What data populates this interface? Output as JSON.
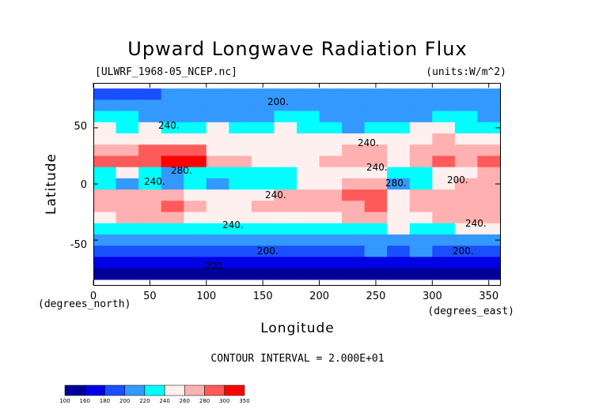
{
  "chart_data": {
    "type": "heatmap",
    "title": "Upward Longwave Radiation Flux",
    "file_label": "[ULWRF_1968-05_NCEP.nc]",
    "units_label": "(units:W/m^2)",
    "xlabel": "Longitude",
    "ylabel": "Latitude",
    "x_unit_label": "(degrees_east)",
    "y_unit_label": "(degrees_north)",
    "xlim": [
      0,
      360
    ],
    "ylim": [
      -90,
      90
    ],
    "x_ticks": [
      0,
      50,
      100,
      150,
      200,
      250,
      300,
      350
    ],
    "y_ticks": [
      -50,
      0,
      50
    ],
    "contour_interval_text": "CONTOUR INTERVAL = 2.000E+01",
    "contour_labels": [
      "200.",
      "240.",
      "240.",
      "280.",
      "240.",
      "280.",
      "240.",
      "240.",
      "200.",
      "200.",
      "200.",
      "240.",
      "200.",
      "240."
    ],
    "colorbar": {
      "levels": [
        "100",
        "160",
        "180",
        "200",
        "220",
        "240",
        "260",
        "280",
        "300",
        "350"
      ],
      "colors": [
        "#000099",
        "#0000e6",
        "#1a4fff",
        "#3399ff",
        "#00ffff",
        "#fff0f0",
        "#ffb0b0",
        "#ff5a5a",
        "#ff0000"
      ]
    },
    "rows": [
      {
        "lat": 80,
        "values": [
          180,
          190,
          190,
          200,
          200,
          200,
          200,
          200,
          200,
          200,
          200,
          200,
          200,
          200,
          200,
          200,
          200,
          200
        ]
      },
      {
        "lat": 70,
        "values": [
          200,
          210,
          210,
          210,
          210,
          210,
          210,
          210,
          210,
          210,
          210,
          210,
          210,
          210,
          210,
          210,
          210,
          200
        ]
      },
      {
        "lat": 60,
        "values": [
          230,
          220,
          210,
          210,
          210,
          210,
          210,
          210,
          220,
          220,
          210,
          210,
          210,
          210,
          210,
          220,
          220,
          210
        ]
      },
      {
        "lat": 50,
        "values": [
          240,
          230,
          240,
          230,
          230,
          240,
          230,
          230,
          240,
          230,
          220,
          210,
          220,
          230,
          240,
          240,
          230,
          230
        ]
      },
      {
        "lat": 40,
        "values": [
          250,
          250,
          250,
          250,
          250,
          240,
          240,
          240,
          240,
          240,
          240,
          240,
          250,
          240,
          250,
          260,
          250,
          250
        ]
      },
      {
        "lat": 30,
        "values": [
          270,
          270,
          280,
          290,
          280,
          250,
          240,
          240,
          240,
          240,
          250,
          260,
          260,
          250,
          260,
          270,
          270,
          270
        ]
      },
      {
        "lat": 20,
        "values": [
          280,
          290,
          290,
          300,
          300,
          260,
          260,
          250,
          250,
          250,
          260,
          270,
          270,
          240,
          270,
          280,
          270,
          290
        ]
      },
      {
        "lat": 10,
        "values": [
          220,
          240,
          230,
          210,
          230,
          230,
          230,
          230,
          230,
          240,
          240,
          250,
          250,
          220,
          230,
          240,
          250,
          260
        ]
      },
      {
        "lat": 0,
        "values": [
          230,
          210,
          220,
          210,
          220,
          210,
          220,
          230,
          230,
          240,
          250,
          270,
          270,
          210,
          220,
          250,
          260,
          260
        ]
      },
      {
        "lat": -10,
        "values": [
          260,
          260,
          260,
          260,
          250,
          240,
          250,
          250,
          260,
          270,
          270,
          280,
          280,
          240,
          260,
          270,
          270,
          270
        ]
      },
      {
        "lat": -20,
        "values": [
          270,
          270,
          270,
          280,
          260,
          250,
          250,
          260,
          260,
          260,
          270,
          270,
          280,
          250,
          270,
          270,
          270,
          270
        ]
      },
      {
        "lat": -30,
        "values": [
          250,
          260,
          260,
          270,
          250,
          240,
          240,
          240,
          240,
          250,
          250,
          260,
          260,
          250,
          250,
          260,
          260,
          260
        ]
      },
      {
        "lat": -40,
        "values": [
          230,
          230,
          230,
          230,
          230,
          230,
          230,
          230,
          230,
          230,
          230,
          230,
          230,
          240,
          230,
          230,
          240,
          240
        ]
      },
      {
        "lat": -50,
        "values": [
          210,
          210,
          210,
          210,
          210,
          210,
          210,
          210,
          210,
          210,
          210,
          210,
          210,
          210,
          210,
          210,
          210,
          210
        ]
      },
      {
        "lat": -60,
        "values": [
          190,
          190,
          190,
          190,
          190,
          190,
          190,
          190,
          190,
          190,
          190,
          190,
          200,
          190,
          200,
          190,
          190,
          190
        ]
      },
      {
        "lat": -70,
        "values": [
          170,
          170,
          170,
          170,
          170,
          160,
          170,
          170,
          170,
          170,
          170,
          170,
          170,
          170,
          170,
          170,
          170,
          170
        ]
      },
      {
        "lat": -80,
        "values": [
          150,
          150,
          150,
          150,
          150,
          150,
          150,
          150,
          150,
          150,
          150,
          150,
          150,
          150,
          150,
          150,
          150,
          150
        ]
      }
    ]
  }
}
